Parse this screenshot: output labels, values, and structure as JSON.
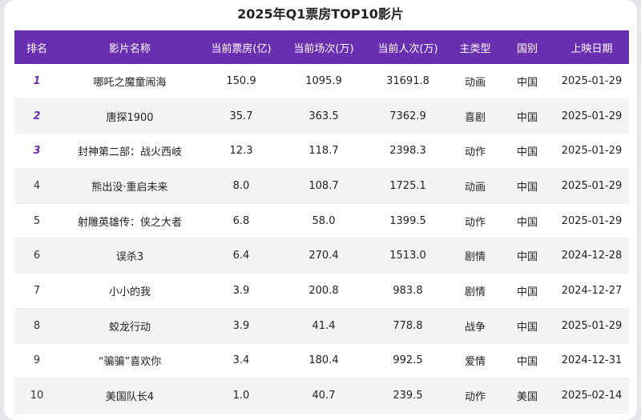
{
  "title": "2025年Q1票房TOP10影片",
  "columns": [
    "排名",
    "影片名称",
    "当前票房(亿)",
    "当前场次(万)",
    "当前人次(万)",
    "主类型",
    "国别",
    "上映日期"
  ],
  "rows": [
    {
      "rank": "1",
      "name": "哪吒之魔童闹海",
      "box": "150.9",
      "shows": "1095.9",
      "viewers": "31691.8",
      "genre": "动画",
      "country": "中国",
      "date": "2025-01-29"
    },
    {
      "rank": "2",
      "name": "唐探1900",
      "box": "35.7",
      "shows": "363.5",
      "viewers": "7362.9",
      "genre": "喜剧",
      "country": "中国",
      "date": "2025-01-29"
    },
    {
      "rank": "3",
      "name": "封神第二部：战火西岐",
      "box": "12.3",
      "shows": "118.7",
      "viewers": "2398.3",
      "genre": "动作",
      "country": "中国",
      "date": "2025-01-29"
    },
    {
      "rank": "4",
      "name": "熊出没·重启未来",
      "box": "8.0",
      "shows": "108.7",
      "viewers": "1725.1",
      "genre": "动画",
      "country": "中国",
      "date": "2025-01-29"
    },
    {
      "rank": "5",
      "name": "射雕英雄传：侠之大者",
      "box": "6.8",
      "shows": "58.0",
      "viewers": "1399.5",
      "genre": "动作",
      "country": "中国",
      "date": "2025-01-29"
    },
    {
      "rank": "6",
      "name": "误杀3",
      "box": "6.4",
      "shows": "270.4",
      "viewers": "1513.0",
      "genre": "剧情",
      "country": "中国",
      "date": "2024-12-28"
    },
    {
      "rank": "7",
      "name": "小小的我",
      "box": "3.9",
      "shows": "200.8",
      "viewers": "983.8",
      "genre": "剧情",
      "country": "中国",
      "date": "2024-12-27"
    },
    {
      "rank": "8",
      "name": "蛟龙行动",
      "box": "3.9",
      "shows": "41.4",
      "viewers": "778.8",
      "genre": "战争",
      "country": "中国",
      "date": "2025-01-29"
    },
    {
      "rank": "9",
      "name": "“骗骗”喜欢你",
      "box": "3.4",
      "shows": "180.4",
      "viewers": "992.5",
      "genre": "爱情",
      "country": "中国",
      "date": "2024-12-31"
    },
    {
      "rank": "10",
      "name": "美国队长4",
      "box": "1.0",
      "shows": "40.7",
      "viewers": "239.5",
      "genre": "动作",
      "country": "美国",
      "date": "2025-02-14"
    }
  ],
  "colors": {
    "header_bg": "#6a2fb0",
    "top_rank": "#6a2fb0"
  }
}
